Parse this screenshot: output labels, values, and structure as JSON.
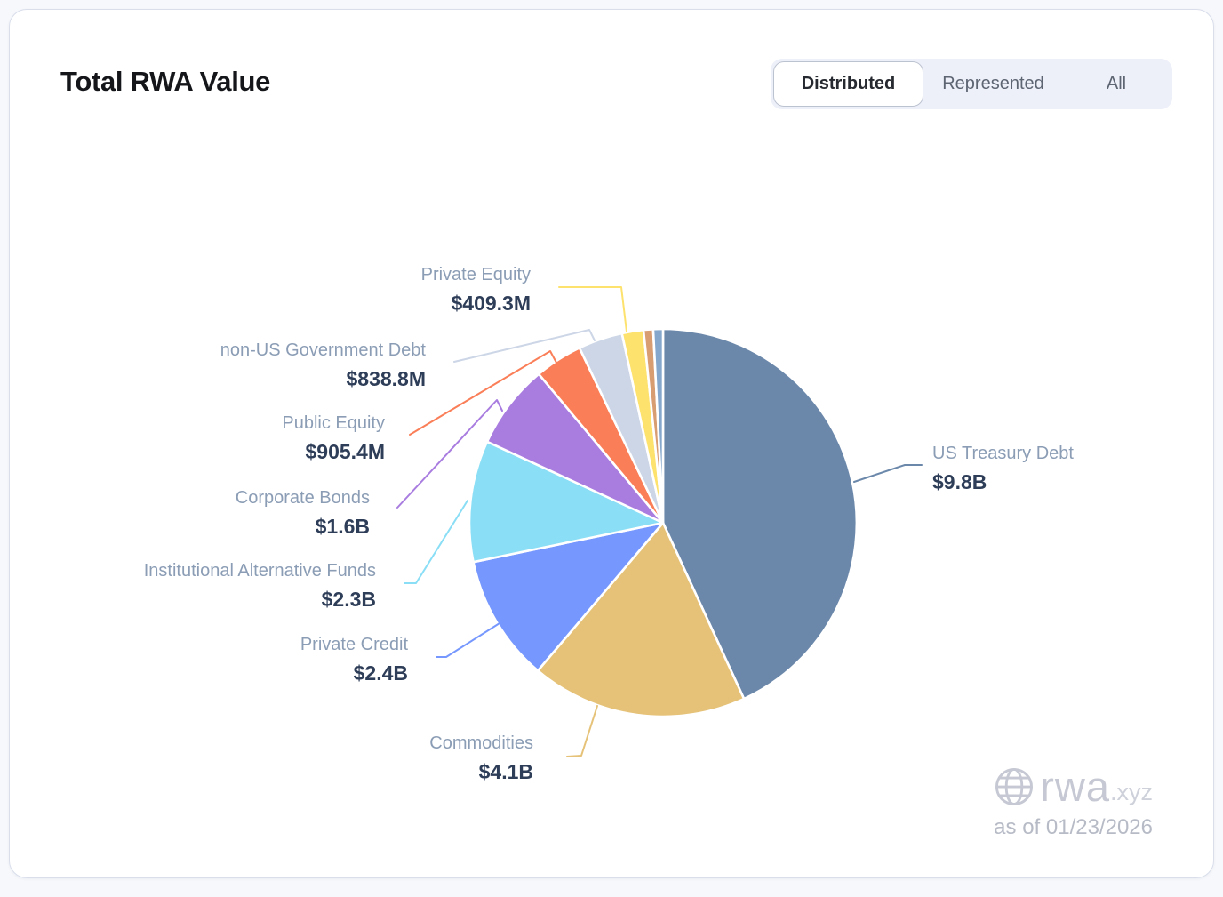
{
  "card": {
    "title": "Total RWA Value"
  },
  "toggle": {
    "options": [
      {
        "label": "Distributed",
        "active": true
      },
      {
        "label": "Represented",
        "active": false
      },
      {
        "label": "All",
        "active": false
      }
    ]
  },
  "footer": {
    "logo_text": "rwa",
    "logo_suffix": ".xyz",
    "as_of": "as of 01/23/2026"
  },
  "chart_data": {
    "type": "pie",
    "title": "Total RWA Value",
    "unit": "USD",
    "start_angle": "12 o'clock",
    "direction": "clockwise",
    "legend": "none, leader-line labels",
    "slices": [
      {
        "name": "US Treasury Debt",
        "value_billions": 9.8,
        "value_label": "$9.8B",
        "color": "#6b88ab"
      },
      {
        "name": "Commodities",
        "value_billions": 4.1,
        "value_label": "$4.1B",
        "color": "#e5c278"
      },
      {
        "name": "Private Credit",
        "value_billions": 2.4,
        "value_label": "$2.4B",
        "color": "#7697fd"
      },
      {
        "name": "Institutional Alternative Funds",
        "value_billions": 2.3,
        "value_label": "$2.3B",
        "color": "#8adef5"
      },
      {
        "name": "Corporate Bonds",
        "value_billions": 1.6,
        "value_label": "$1.6B",
        "color": "#a97de0"
      },
      {
        "name": "Public Equity",
        "value_billions": 0.9054,
        "value_label": "$905.4M",
        "color": "#fa7e58"
      },
      {
        "name": "non-US Government Debt",
        "value_billions": 0.8388,
        "value_label": "$838.8M",
        "color": "#ccd6e6"
      },
      {
        "name": "Private Equity",
        "value_billions": 0.4093,
        "value_label": "$409.3M",
        "color": "#fde26e"
      },
      {
        "name": "",
        "value_billions": 0.18,
        "value_label": "",
        "color": "#d99d72"
      },
      {
        "name": "",
        "value_billions": 0.185,
        "value_label": "",
        "color": "#85a7cc"
      }
    ],
    "label_name_color": "#8b9db5",
    "label_value_color": "#2e3d58"
  }
}
